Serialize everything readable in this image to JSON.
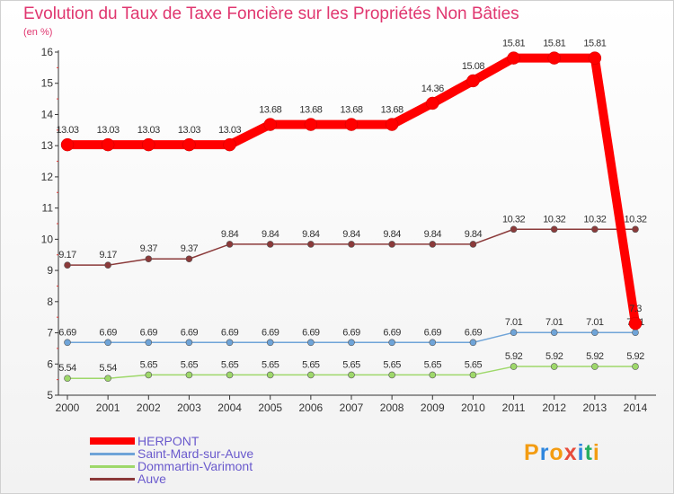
{
  "chart_data": {
    "type": "line",
    "title": "Evolution du Taux de Taxe Foncière sur les Propriétés Non Bâties",
    "ylabel": "(en %)",
    "xlabel": "",
    "ylim": [
      5,
      16
    ],
    "grid": false,
    "legend_position": "bottom-left",
    "x": [
      "2000",
      "2001",
      "2002",
      "2003",
      "2004",
      "2005",
      "2006",
      "2007",
      "2008",
      "2009",
      "2010",
      "2011",
      "2012",
      "2013",
      "2014"
    ],
    "yticks": [
      5,
      6,
      7,
      8,
      9,
      10,
      11,
      12,
      13,
      14,
      15,
      16
    ],
    "series": [
      {
        "name": "HERPONT",
        "color": "#ff0000",
        "values": [
          13.03,
          13.03,
          13.03,
          13.03,
          13.03,
          13.68,
          13.68,
          13.68,
          13.68,
          14.36,
          15.08,
          15.81,
          15.81,
          15.81,
          7.3
        ],
        "labels": [
          "13.03",
          "13.03",
          "13.03",
          "13.03",
          "13.03",
          "13.68",
          "13.68",
          "13.68",
          "13.68",
          "14.36",
          "15.08",
          "15.81",
          "15.81",
          "15.81",
          "7.3"
        ]
      },
      {
        "name": "Saint-Mard-sur-Auve",
        "color": "#6fa4d8",
        "values": [
          6.69,
          6.69,
          6.69,
          6.69,
          6.69,
          6.69,
          6.69,
          6.69,
          6.69,
          6.69,
          6.69,
          7.01,
          7.01,
          7.01,
          7.01
        ],
        "labels": [
          "6.69",
          "6.69",
          "6.69",
          "6.69",
          "6.69",
          "6.69",
          "6.69",
          "6.69",
          "6.69",
          "6.69",
          "6.69",
          "7.01",
          "7.01",
          "7.01",
          "7.01"
        ]
      },
      {
        "name": "Dommartin-Varimont",
        "color": "#9ed86a",
        "values": [
          5.54,
          5.54,
          5.65,
          5.65,
          5.65,
          5.65,
          5.65,
          5.65,
          5.65,
          5.65,
          5.65,
          5.92,
          5.92,
          5.92,
          5.92
        ],
        "labels": [
          "5.54",
          "5.54",
          "5.65",
          "5.65",
          "5.65",
          "5.65",
          "5.65",
          "5.65",
          "5.65",
          "5.65",
          "5.65",
          "5.92",
          "5.92",
          "5.92",
          "5.92"
        ]
      },
      {
        "name": "Auve",
        "color": "#8b3a3a",
        "values": [
          9.17,
          9.17,
          9.37,
          9.37,
          9.84,
          9.84,
          9.84,
          9.84,
          9.84,
          9.84,
          9.84,
          10.32,
          10.32,
          10.32,
          10.32
        ],
        "labels": [
          "9.17",
          "9.17",
          "9.37",
          "9.37",
          "9.84",
          "9.84",
          "9.84",
          "9.84",
          "9.84",
          "9.84",
          "9.84",
          "10.32",
          "10.32",
          "10.32",
          "10.32"
        ]
      }
    ]
  },
  "legend": [
    "HERPONT",
    "Saint-Mard-sur-Auve",
    "Dommartin-Varimont",
    "Auve"
  ],
  "logo": {
    "text": "Proxiti",
    "colors": [
      "#f39c12",
      "#2e86de",
      "#f39c12",
      "#e74c3c",
      "#2e86de",
      "#27ae60",
      "#f39c12"
    ]
  }
}
